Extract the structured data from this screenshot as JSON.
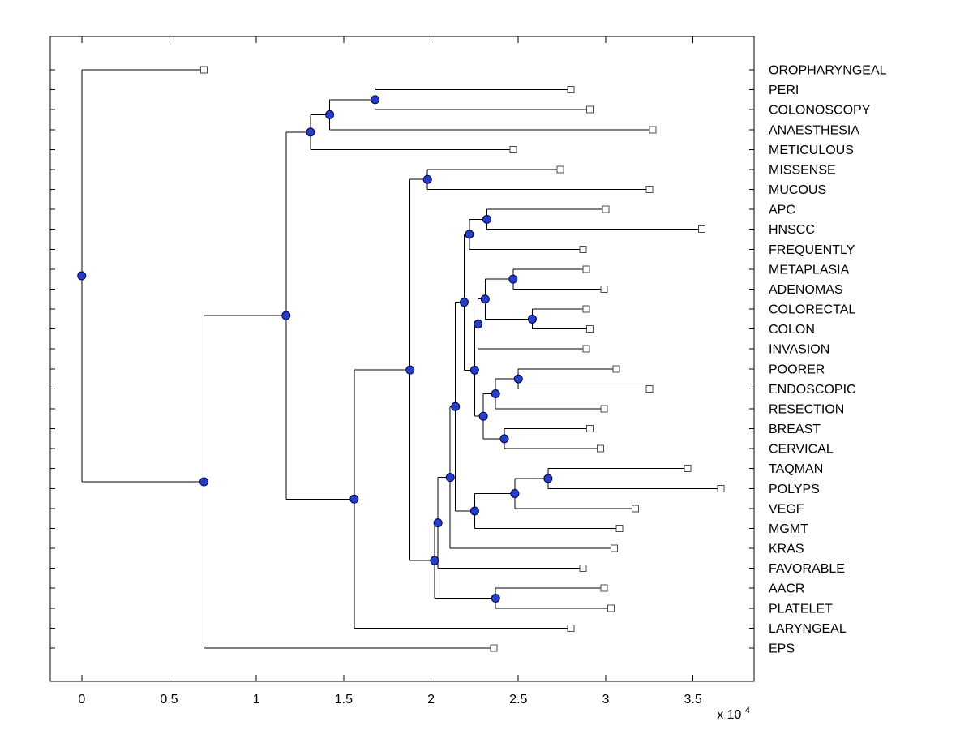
{
  "figure": {
    "background": "#ffffff",
    "axis_color": "#000000",
    "line_color": "#000000"
  },
  "chart_data": {
    "type": "dendrogram",
    "orientation": "left-to-right",
    "title": "",
    "xlabel": "",
    "ylabel": "",
    "x_axis": {
      "xlim": [
        -1800,
        38500
      ],
      "ticks": [
        0,
        5000,
        10000,
        15000,
        20000,
        25000,
        30000,
        35000
      ],
      "tick_labels": [
        "0",
        "0.5",
        "1",
        "1.5",
        "2",
        "2.5",
        "3",
        "3.5"
      ],
      "exponent_prefix": "x 10",
      "exponent": "4"
    },
    "markers": {
      "branch_shape": "filled-circle",
      "branch_fill": "#2540c8",
      "branch_stroke": "#000050",
      "leaf_shape": "open-square",
      "leaf_fill": "#ffffff",
      "leaf_stroke": "#4a4a4a"
    },
    "leaf_labels": [
      "OROPHARYNGEAL",
      "PERI",
      "COLONOSCOPY",
      "ANAESTHESIA",
      "METICULOUS",
      "MISSENSE",
      "MUCOUS",
      "APC",
      "HNSCC",
      "FREQUENTLY",
      "METAPLASIA",
      "ADENOMAS",
      "COLORECTAL",
      "COLON",
      "INVASION",
      "POORER",
      "ENDOSCOPIC",
      "RESECTION",
      "BREAST",
      "CERVICAL",
      "TAQMAN",
      "POLYPS",
      "VEGF",
      "MGMT",
      "KRAS",
      "FAVORABLE",
      "AACR",
      "PLATELET",
      "LARYNGEAL",
      "EPS"
    ],
    "tree": {
      "x": 0,
      "children": [
        {
          "label": "OROPHARYNGEAL",
          "x": 7000
        },
        {
          "x": 7000,
          "children": [
            {
              "x": 11700,
              "children": [
                {
                  "x": 13100,
                  "children": [
                    {
                      "x": 14200,
                      "children": [
                        {
                          "x": 16800,
                          "children": [
                            {
                              "label": "PERI",
                              "x": 28000
                            },
                            {
                              "label": "COLONOSCOPY",
                              "x": 29100
                            }
                          ]
                        },
                        {
                          "label": "ANAESTHESIA",
                          "x": 32700
                        }
                      ]
                    },
                    {
                      "label": "METICULOUS",
                      "x": 24700
                    }
                  ]
                },
                {
                  "x": 15600,
                  "children": [
                    {
                      "x": 18800,
                      "children": [
                        {
                          "x": 19800,
                          "children": [
                            {
                              "label": "MISSENSE",
                              "x": 27400
                            },
                            {
                              "label": "MUCOUS",
                              "x": 32500
                            }
                          ]
                        },
                        {
                          "x": 20200,
                          "children": [
                            {
                              "x": 20400,
                              "children": [
                                {
                                  "x": 21100,
                                  "children": [
                                    {
                                      "x": 21400,
                                      "children": [
                                        {
                                          "x": 21900,
                                          "children": [
                                            {
                                              "x": 22200,
                                              "children": [
                                                {
                                                  "x": 23200,
                                                  "children": [
                                                    {
                                                      "label": "APC",
                                                      "x": 30000
                                                    },
                                                    {
                                                      "label": "HNSCC",
                                                      "x": 35500
                                                    }
                                                  ]
                                                },
                                                {
                                                  "label": "FREQUENTLY",
                                                  "x": 28700
                                                }
                                              ]
                                            },
                                            {
                                              "x": 22500,
                                              "children": [
                                                {
                                                  "x": 22700,
                                                  "children": [
                                                    {
                                                      "x": 23100,
                                                      "children": [
                                                        {
                                                          "x": 24700,
                                                          "children": [
                                                            {
                                                              "label": "METAPLASIA",
                                                              "x": 28900
                                                            },
                                                            {
                                                              "label": "ADENOMAS",
                                                              "x": 29900
                                                            }
                                                          ]
                                                        },
                                                        {
                                                          "x": 25800,
                                                          "children": [
                                                            {
                                                              "label": "COLORECTAL",
                                                              "x": 28900
                                                            },
                                                            {
                                                              "label": "COLON",
                                                              "x": 29100
                                                            }
                                                          ]
                                                        }
                                                      ]
                                                    },
                                                    {
                                                      "label": "INVASION",
                                                      "x": 28900
                                                    }
                                                  ]
                                                },
                                                {
                                                  "x": 23000,
                                                  "children": [
                                                    {
                                                      "x": 23700,
                                                      "children": [
                                                        {
                                                          "x": 25000,
                                                          "children": [
                                                            {
                                                              "label": "POORER",
                                                              "x": 30600
                                                            },
                                                            {
                                                              "label": "ENDOSCOPIC",
                                                              "x": 32500
                                                            }
                                                          ]
                                                        },
                                                        {
                                                          "label": "RESECTION",
                                                          "x": 29900
                                                        }
                                                      ]
                                                    },
                                                    {
                                                      "x": 24200,
                                                      "children": [
                                                        {
                                                          "label": "BREAST",
                                                          "x": 29100
                                                        },
                                                        {
                                                          "label": "CERVICAL",
                                                          "x": 29700
                                                        }
                                                      ]
                                                    }
                                                  ]
                                                }
                                              ]
                                            }
                                          ]
                                        },
                                        {
                                          "x": 22500,
                                          "children": [
                                            {
                                              "x": 24800,
                                              "children": [
                                                {
                                                  "x": 26700,
                                                  "children": [
                                                    {
                                                      "label": "TAQMAN",
                                                      "x": 34700
                                                    },
                                                    {
                                                      "label": "POLYPS",
                                                      "x": 36600
                                                    }
                                                  ]
                                                },
                                                {
                                                  "label": "VEGF",
                                                  "x": 31700
                                                }
                                              ]
                                            },
                                            {
                                              "label": "MGMT",
                                              "x": 30800
                                            }
                                          ]
                                        }
                                      ]
                                    },
                                    {
                                      "label": "KRAS",
                                      "x": 30500
                                    }
                                  ]
                                },
                                {
                                  "label": "FAVORABLE",
                                  "x": 28700
                                }
                              ]
                            },
                            {
                              "x": 23700,
                              "children": [
                                {
                                  "label": "AACR",
                                  "x": 29900
                                },
                                {
                                  "label": "PLATELET",
                                  "x": 30300
                                }
                              ]
                            }
                          ]
                        }
                      ]
                    },
                    {
                      "label": "LARYNGEAL",
                      "x": 28000
                    }
                  ]
                }
              ]
            },
            {
              "label": "EPS",
              "x": 23600
            }
          ]
        }
      ]
    }
  }
}
